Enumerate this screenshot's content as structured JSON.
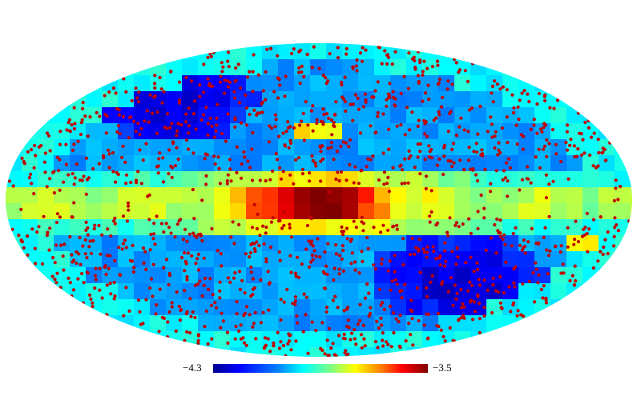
{
  "map": {
    "projection": "mollweide",
    "scale_type": "colormap",
    "colormap": [
      "#00008f",
      "#0000ff",
      "#0080ff",
      "#00ffff",
      "#80ff80",
      "#ffff00",
      "#ff8000",
      "#ff0000",
      "#800000"
    ],
    "point_color": "#c00000",
    "background_color": "#ffffff"
  },
  "colorbar": {
    "min_label": "−4.3",
    "max_label": "−3.5",
    "min_value": -4.3,
    "max_value": -3.5
  }
}
